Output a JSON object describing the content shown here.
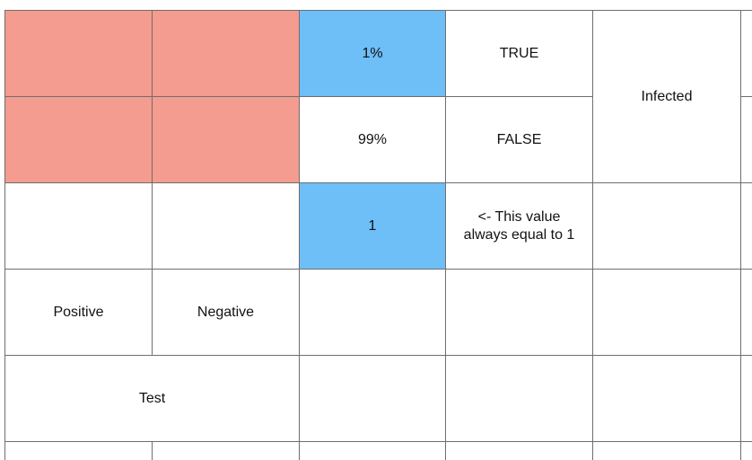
{
  "sheet": {
    "colors": {
      "red_fill": "#f39c8f",
      "blue_fill": "#6ebef8",
      "grid_line": "#6e6e6e"
    },
    "row1": {
      "c3": "1%",
      "c4": "TRUE"
    },
    "infected_label": "Infected",
    "row2": {
      "c3": "99%",
      "c4": "FALSE"
    },
    "row3": {
      "c3": "1",
      "c4": "<- This value\nalways equal to 1"
    },
    "row4": {
      "c1": "Positive",
      "c2": "Negative"
    },
    "row5": {
      "test_label": "Test"
    }
  }
}
